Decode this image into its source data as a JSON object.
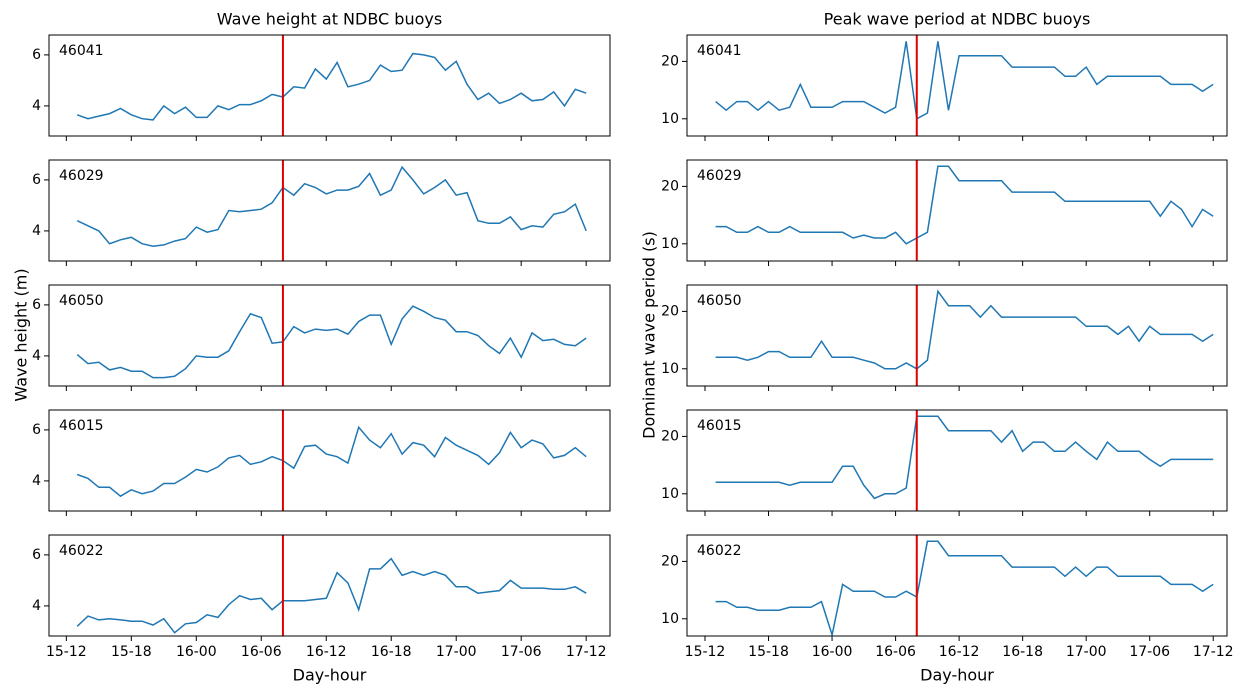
{
  "chart_data": [
    {
      "type": "line",
      "title": "Wave height at NDBC buoys",
      "ylabel": "Wave height (m)",
      "xlabel": "Day-hour",
      "color": "#1f77b4",
      "vline": 32,
      "vline_color": "#e00000",
      "x": [
        13,
        14,
        15,
        16,
        17,
        18,
        19,
        20,
        21,
        22,
        23,
        24,
        25,
        26,
        27,
        28,
        29,
        30,
        31,
        32,
        33,
        34,
        35,
        36,
        37,
        38,
        39,
        40,
        41,
        42,
        43,
        44,
        45,
        46,
        47,
        48,
        49,
        50,
        51,
        52,
        53,
        54,
        55,
        56,
        57,
        58,
        59,
        60
      ],
      "xlim": [
        10.4,
        62.2
      ],
      "xticks": [
        {
          "value": 12,
          "label": "15-12"
        },
        {
          "value": 18,
          "label": "15-18"
        },
        {
          "value": 24,
          "label": "16-00"
        },
        {
          "value": 30,
          "label": "16-06"
        },
        {
          "value": 36,
          "label": "16-12"
        },
        {
          "value": 42,
          "label": "16-18"
        },
        {
          "value": 48,
          "label": "17-00"
        },
        {
          "value": 54,
          "label": "17-06"
        },
        {
          "value": 60,
          "label": "17-12"
        }
      ],
      "ylim": [
        2.82,
        6.78
      ],
      "yticks": [
        4,
        6
      ],
      "panels": [
        {
          "label": "46041",
          "values": [
            3.65,
            3.5,
            3.6,
            3.7,
            3.9,
            3.65,
            3.5,
            3.45,
            4.0,
            3.7,
            3.95,
            3.55,
            3.55,
            4.0,
            3.85,
            4.05,
            4.05,
            4.2,
            4.45,
            4.35,
            4.75,
            4.7,
            5.45,
            5.05,
            5.7,
            4.75,
            4.85,
            5.0,
            5.6,
            5.35,
            5.4,
            6.05,
            6.0,
            5.9,
            5.4,
            5.75,
            4.85,
            4.25,
            4.5,
            4.1,
            4.25,
            4.5,
            4.2,
            4.25,
            4.55,
            4.0,
            4.65,
            4.5
          ]
        },
        {
          "label": "46029",
          "values": [
            4.4,
            4.2,
            4.0,
            3.5,
            3.65,
            3.75,
            3.5,
            3.4,
            3.45,
            3.6,
            3.7,
            4.15,
            3.95,
            4.05,
            4.8,
            4.75,
            4.8,
            4.85,
            5.1,
            5.7,
            5.4,
            5.85,
            5.7,
            5.45,
            5.6,
            5.6,
            5.75,
            6.25,
            5.4,
            5.6,
            6.5,
            6.0,
            5.45,
            5.7,
            6.0,
            5.4,
            5.5,
            4.4,
            4.3,
            4.3,
            4.55,
            4.05,
            4.2,
            4.15,
            4.65,
            4.75,
            5.05,
            4.0
          ]
        },
        {
          "label": "46050",
          "values": [
            4.05,
            3.7,
            3.75,
            3.45,
            3.55,
            3.4,
            3.4,
            3.15,
            3.15,
            3.2,
            3.5,
            4.0,
            3.95,
            3.95,
            4.2,
            4.95,
            5.65,
            5.5,
            4.5,
            4.55,
            5.15,
            4.9,
            5.05,
            5.0,
            5.05,
            4.85,
            5.35,
            5.6,
            5.6,
            4.45,
            5.45,
            5.95,
            5.75,
            5.5,
            5.4,
            4.95,
            4.95,
            4.8,
            4.4,
            4.1,
            4.7,
            3.95,
            4.9,
            4.6,
            4.65,
            4.45,
            4.4,
            4.7
          ]
        },
        {
          "label": "46015",
          "values": [
            4.25,
            4.1,
            3.75,
            3.75,
            3.4,
            3.65,
            3.5,
            3.6,
            3.9,
            3.9,
            4.15,
            4.45,
            4.35,
            4.55,
            4.9,
            5.0,
            4.65,
            4.75,
            4.95,
            4.8,
            4.5,
            5.35,
            5.4,
            5.05,
            4.95,
            4.7,
            6.1,
            5.6,
            5.3,
            5.85,
            5.05,
            5.5,
            5.4,
            4.95,
            5.7,
            5.4,
            5.2,
            5.0,
            4.65,
            5.1,
            5.9,
            5.3,
            5.6,
            5.45,
            4.9,
            5.0,
            5.3,
            4.95
          ]
        },
        {
          "label": "46022",
          "values": [
            3.2,
            3.6,
            3.45,
            3.5,
            3.45,
            3.4,
            3.4,
            3.25,
            3.5,
            2.95,
            3.3,
            3.35,
            3.65,
            3.55,
            4.05,
            4.4,
            4.25,
            4.3,
            3.85,
            4.2,
            4.2,
            4.2,
            4.25,
            4.3,
            5.3,
            4.9,
            3.85,
            5.45,
            5.45,
            5.85,
            5.2,
            5.35,
            5.2,
            5.35,
            5.2,
            4.75,
            4.75,
            4.5,
            4.55,
            4.6,
            5.0,
            4.7,
            4.7,
            4.7,
            4.65,
            4.65,
            4.75,
            4.5
          ]
        }
      ]
    },
    {
      "type": "line",
      "title": "Peak wave period at NDBC buoys",
      "ylabel": "Dominant wave period (s)",
      "xlabel": "Day-hour",
      "color": "#1f77b4",
      "vline": 32,
      "vline_color": "#e00000",
      "x": [
        13,
        14,
        15,
        16,
        17,
        18,
        19,
        20,
        21,
        22,
        23,
        24,
        25,
        26,
        27,
        28,
        29,
        30,
        31,
        32,
        33,
        34,
        35,
        36,
        37,
        38,
        39,
        40,
        41,
        42,
        43,
        44,
        45,
        46,
        47,
        48,
        49,
        50,
        51,
        52,
        53,
        54,
        55,
        56,
        57,
        58,
        59,
        60
      ],
      "xlim": [
        10.3,
        61.3
      ],
      "xticks": [
        {
          "value": 12,
          "label": "15-12"
        },
        {
          "value": 18,
          "label": "15-18"
        },
        {
          "value": 24,
          "label": "16-00"
        },
        {
          "value": 30,
          "label": "16-06"
        },
        {
          "value": 36,
          "label": "16-12"
        },
        {
          "value": 42,
          "label": "16-18"
        },
        {
          "value": 48,
          "label": "17-00"
        },
        {
          "value": 54,
          "label": "17-06"
        },
        {
          "value": 60,
          "label": "17-12"
        }
      ],
      "ylim": [
        7.0,
        24.6
      ],
      "yticks": [
        10,
        20
      ],
      "panels": [
        {
          "label": "46041",
          "values": [
            13,
            11.5,
            13,
            13,
            11.5,
            13,
            11.5,
            12,
            16,
            12,
            12,
            12,
            13,
            13,
            13,
            12,
            11,
            12,
            23.5,
            10,
            11,
            23.5,
            11.5,
            21,
            21,
            21,
            21,
            21,
            19,
            19,
            19,
            19,
            19,
            17.4,
            17.4,
            19,
            16,
            17.4,
            17.4,
            17.4,
            17.4,
            17.4,
            17.4,
            16,
            16,
            16,
            14.8,
            16
          ]
        },
        {
          "label": "46029",
          "values": [
            13,
            13,
            12,
            12,
            13,
            12,
            12,
            13,
            12,
            12,
            12,
            12,
            12,
            11,
            11.5,
            11,
            11,
            12,
            10,
            11,
            12,
            23.5,
            23.5,
            21,
            21,
            21,
            21,
            21,
            19,
            19,
            19,
            19,
            19,
            17.4,
            17.4,
            17.4,
            17.4,
            17.4,
            17.4,
            17.4,
            17.4,
            17.4,
            14.8,
            17.4,
            16,
            13,
            16,
            14.8
          ]
        },
        {
          "label": "46050",
          "values": [
            12,
            12,
            12,
            11.5,
            12,
            13,
            13,
            12,
            12,
            12,
            14.8,
            12,
            12,
            12,
            11.5,
            11,
            10,
            10,
            11,
            10,
            11.5,
            23.5,
            21,
            21,
            21,
            19,
            21,
            19,
            19,
            19,
            19,
            19,
            19,
            19,
            19,
            17.4,
            17.4,
            17.4,
            16,
            17.4,
            14.8,
            17.4,
            16,
            16,
            16,
            16,
            14.8,
            16
          ]
        },
        {
          "label": "46015",
          "values": [
            12,
            12,
            12,
            12,
            12,
            12,
            12,
            11.5,
            12,
            12,
            12,
            12,
            14.8,
            14.8,
            11.5,
            9.2,
            10,
            10,
            11,
            23.5,
            23.5,
            23.5,
            21,
            21,
            21,
            21,
            21,
            19,
            21,
            17.4,
            19,
            19,
            17.4,
            17.4,
            19,
            17.4,
            16,
            19,
            17.4,
            17.4,
            17.4,
            16,
            14.8,
            16,
            16,
            16,
            16,
            16
          ]
        },
        {
          "label": "46022",
          "values": [
            13,
            13,
            12,
            12,
            11.5,
            11.5,
            11.5,
            12,
            12,
            12,
            13,
            7.2,
            16,
            14.8,
            14.8,
            14.8,
            13.8,
            13.8,
            14.8,
            13.8,
            23.5,
            23.5,
            21,
            21,
            21,
            21,
            21,
            21,
            19,
            19,
            19,
            19,
            19,
            17.4,
            19,
            17.4,
            19,
            19,
            17.4,
            17.4,
            17.4,
            17.4,
            17.4,
            16,
            16,
            16,
            14.8,
            16
          ]
        }
      ]
    }
  ]
}
